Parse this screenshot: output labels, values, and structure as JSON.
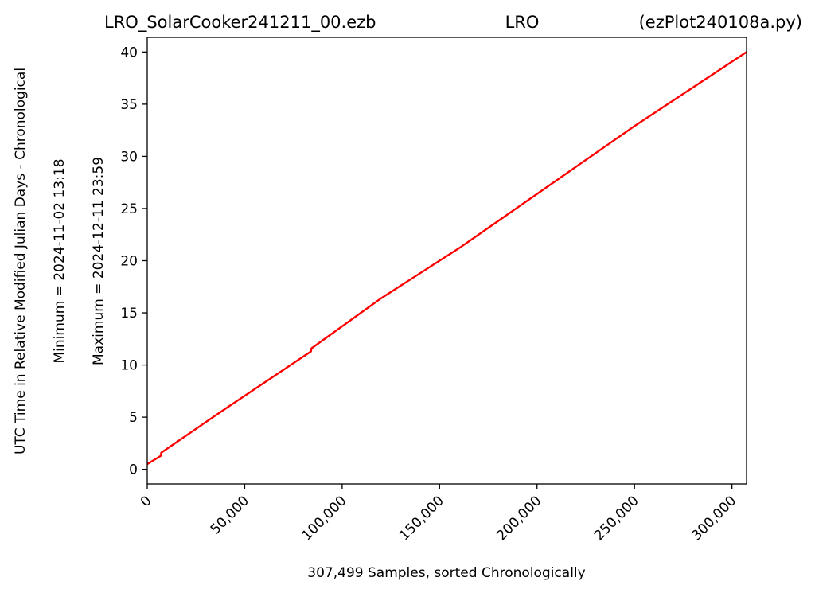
{
  "chart_data": {
    "type": "line",
    "title_left": "LRO_SolarCooker241211_00.ezb",
    "title_center": "LRO",
    "title_right": "(ezPlot240108a.py)",
    "xlabel": "307,499 Samples, sorted Chronologically",
    "ylabel_lines": [
      "UTC Time in Relative Modified Julian Days - Chronological",
      "Minimum = 2024-11-02   13:18",
      "Maximum = 2024-12-11   23:59"
    ],
    "xlim": [
      0,
      307499
    ],
    "ylim": [
      -1.4,
      41.4
    ],
    "x_ticks": [
      0,
      50000,
      100000,
      150000,
      200000,
      250000,
      300000
    ],
    "x_tick_labels": [
      "0",
      "50,000",
      "100,000",
      "150,000",
      "200,000",
      "250,000",
      "300,000"
    ],
    "y_ticks": [
      0,
      5,
      10,
      15,
      20,
      25,
      30,
      35,
      40
    ],
    "y_tick_labels": [
      "0",
      "5",
      "10",
      "15",
      "20",
      "25",
      "30",
      "35",
      "40"
    ],
    "grid": false,
    "series": [
      {
        "color": "#ff0000",
        "x": [
          0,
          7000,
          7200,
          40000,
          84000,
          84300,
          120000,
          160000,
          200000,
          250000,
          307499
        ],
        "y": [
          0.5,
          1.3,
          1.6,
          5.8,
          11.3,
          11.6,
          16.4,
          21.2,
          26.4,
          32.9,
          40.0
        ]
      }
    ]
  }
}
